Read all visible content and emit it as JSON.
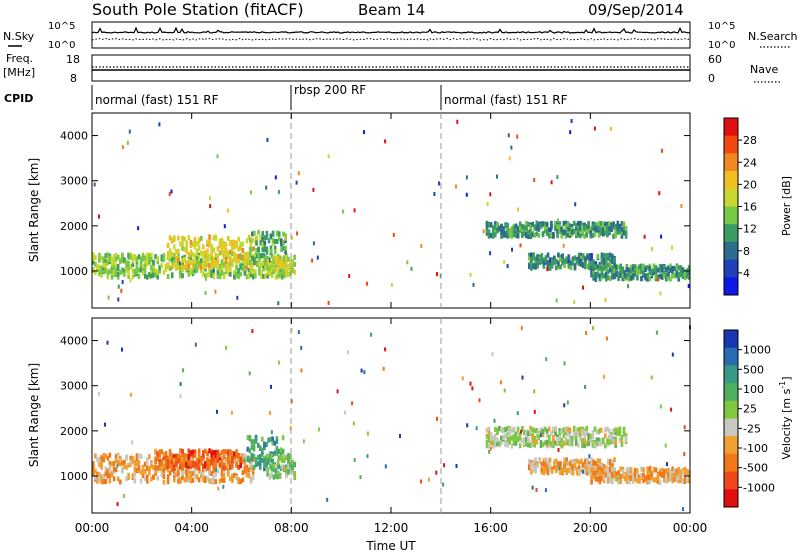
{
  "header": {
    "station": "South Pole Station (fitACF)",
    "beam": "Beam 14",
    "date": "09/Sep/2014"
  },
  "top_panels": {
    "nsky_label": "N.Sky",
    "nsky_ticks": [
      "10^5",
      "10^0"
    ],
    "nsearch_label": "N.Search",
    "nsearch_ticks": [
      "10^5",
      "10^0"
    ],
    "freq_label": "Freq.",
    "freq_unit": "[MHz]",
    "freq_ticks": [
      "18",
      "8"
    ],
    "nave_label": "Nave",
    "nave_ticks": [
      "60",
      "0"
    ],
    "cpid_label": "CPID",
    "cpid_segments": [
      {
        "label": "normal (fast) 151 RF",
        "start_hour": 0,
        "end_hour": 8.0
      },
      {
        "label": "rbsp 200 RF",
        "start_hour": 8.0,
        "end_hour": 14.0
      },
      {
        "label": "normal (fast) 151 RF",
        "start_hour": 14.0,
        "end_hour": 24.0
      }
    ]
  },
  "power_colorbar": {
    "label": "Power [dB]",
    "ticks": [
      "28",
      "24",
      "20",
      "16",
      "12",
      "8",
      "4"
    ],
    "colors": [
      "#e01010",
      "#f04a10",
      "#f08a20",
      "#f0c020",
      "#c8d830",
      "#78c848",
      "#3c9c64",
      "#2c6c8c",
      "#2040b8",
      "#1018e8"
    ]
  },
  "velocity_colorbar": {
    "label": "Velocity [m s",
    "label_sup": "-1",
    "label_end": "]",
    "ticks": [
      "1000",
      "500",
      "100",
      "25",
      "-25",
      "-100",
      "-500",
      "-1000"
    ],
    "colors": [
      "#1838b0",
      "#2a6cb0",
      "#3a9888",
      "#50b060",
      "#80c840",
      "#c8c8c0",
      "#f0a030",
      "#f07818",
      "#f04818",
      "#e01010"
    ]
  },
  "x_axis": {
    "label": "Time UT",
    "ticks": [
      "00:00",
      "04:00",
      "08:00",
      "12:00",
      "16:00",
      "20:00",
      "00:00"
    ]
  },
  "chart_data": [
    {
      "type": "heatmap",
      "title": "Power",
      "xlabel": "Time UT",
      "ylabel": "Slant Range [km]",
      "xlim": [
        0,
        24
      ],
      "ylim": [
        180,
        4500
      ],
      "y_ticks": [
        "4000",
        "3000",
        "2000",
        "1000"
      ],
      "colorbar": {
        "label": "Power [dB]",
        "range": [
          0,
          30
        ]
      },
      "echo_regions": [
        {
          "t_start": 0.0,
          "t_end": 7.8,
          "range_center": 1100,
          "range_halfwidth": 250,
          "value": 14
        },
        {
          "t_start": 3.0,
          "t_end": 6.5,
          "range_center": 1400,
          "range_halfwidth": 350,
          "value": 18
        },
        {
          "t_start": 6.3,
          "t_end": 7.8,
          "range_center": 1500,
          "range_halfwidth": 350,
          "value": 12
        },
        {
          "t_start": 7.0,
          "t_end": 8.2,
          "range_center": 1100,
          "range_halfwidth": 200,
          "value": 16
        },
        {
          "t_start": 15.8,
          "t_end": 21.5,
          "range_center": 1900,
          "range_halfwidth": 150,
          "value": 10
        },
        {
          "t_start": 17.5,
          "t_end": 21.0,
          "range_center": 1200,
          "range_halfwidth": 150,
          "value": 9
        },
        {
          "t_start": 20.0,
          "t_end": 24.0,
          "range_center": 950,
          "range_halfwidth": 150,
          "value": 10
        }
      ]
    },
    {
      "type": "heatmap",
      "title": "Velocity",
      "xlabel": "Time UT",
      "ylabel": "Slant Range [km]",
      "xlim": [
        0,
        24
      ],
      "ylim": [
        180,
        4500
      ],
      "y_ticks": [
        "4000",
        "3000",
        "2000",
        "1000"
      ],
      "colorbar": {
        "label": "Velocity [m s-1]",
        "range": [
          -1000,
          1000
        ]
      },
      "echo_regions": [
        {
          "t_start": 0.0,
          "t_end": 6.5,
          "range_center": 1150,
          "range_halfwidth": 300,
          "value": -300
        },
        {
          "t_start": 2.5,
          "t_end": 6.0,
          "range_center": 1350,
          "range_halfwidth": 200,
          "value": -600
        },
        {
          "t_start": 6.2,
          "t_end": 7.7,
          "range_center": 1500,
          "range_halfwidth": 350,
          "value": 400
        },
        {
          "t_start": 7.0,
          "t_end": 8.2,
          "range_center": 1200,
          "range_halfwidth": 250,
          "value": 150
        },
        {
          "t_start": 15.8,
          "t_end": 21.5,
          "range_center": 1850,
          "range_halfwidth": 200,
          "value": 0
        },
        {
          "t_start": 17.5,
          "t_end": 21.0,
          "range_center": 1200,
          "range_halfwidth": 150,
          "value": -250
        },
        {
          "t_start": 20.0,
          "t_end": 24.0,
          "range_center": 1000,
          "range_halfwidth": 150,
          "value": -300
        }
      ]
    }
  ]
}
